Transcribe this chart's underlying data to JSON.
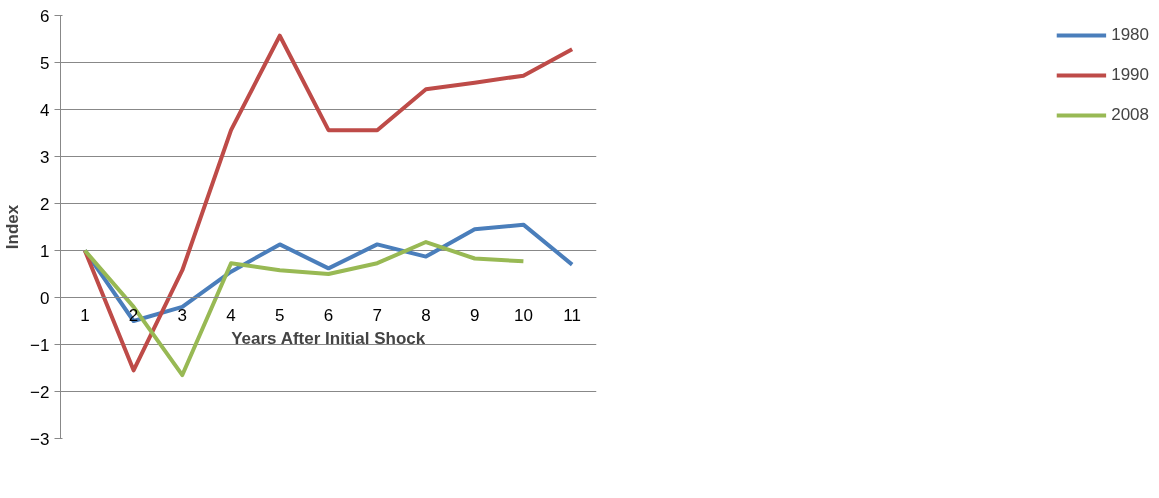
{
  "chart_data": {
    "type": "line",
    "xlabel": "Years After Initial Shock",
    "ylabel": "Index",
    "categories": [
      "1",
      "2",
      "3",
      "4",
      "5",
      "6",
      "7",
      "8",
      "9",
      "10",
      "11"
    ],
    "series": [
      {
        "name": "1980",
        "color": "#4a7ebb",
        "values": [
          1.0,
          -0.5,
          -0.2,
          0.55,
          1.13,
          0.62,
          1.13,
          0.87,
          1.45,
          1.55,
          0.7
        ]
      },
      {
        "name": "1990",
        "color": "#be4b48",
        "values": [
          1.0,
          -1.55,
          0.58,
          3.56,
          5.57,
          3.56,
          3.56,
          4.43,
          4.57,
          4.72,
          5.28
        ]
      },
      {
        "name": "2008",
        "color": "#98b954",
        "values": [
          1.0,
          -0.2,
          -1.65,
          0.73,
          0.58,
          0.5,
          0.73,
          1.18,
          0.83,
          0.77,
          null
        ]
      }
    ],
    "ylim": [
      -3,
      6
    ],
    "yticks": [
      -3,
      -2,
      -1,
      0,
      1,
      2,
      3,
      4,
      5,
      6
    ],
    "grid": "y",
    "legend": "right",
    "marker": "none",
    "line_style": "solid"
  }
}
